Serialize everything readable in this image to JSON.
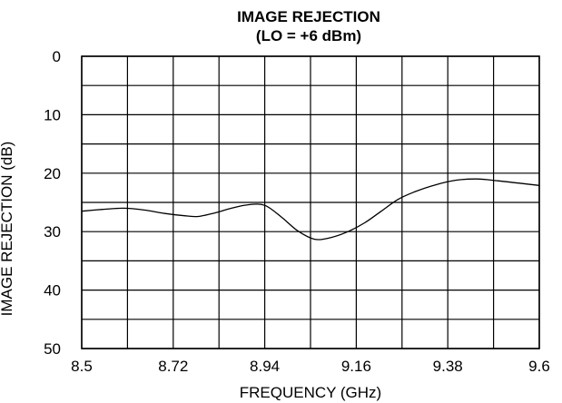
{
  "chart_data": {
    "type": "line",
    "title": "IMAGE REJECTION",
    "subtitle": "(LO = +6 dBm)",
    "xlabel": "FREQUENCY (GHz)",
    "ylabel": "IMAGE REJECTION (dB)",
    "xlim": [
      8.5,
      9.6
    ],
    "ylim": [
      0,
      50
    ],
    "y_inverted": true,
    "x_ticks": [
      "8.5",
      "8.72",
      "8.94",
      "9.16",
      "9.38",
      "9.6"
    ],
    "x_tick_values": [
      8.5,
      8.72,
      8.94,
      9.16,
      9.38,
      9.6
    ],
    "y_ticks": [
      "0",
      "10",
      "20",
      "30",
      "40",
      "50"
    ],
    "y_tick_values": [
      0,
      10,
      20,
      30,
      40,
      50
    ],
    "x_minor_grid": [
      8.61,
      8.83,
      9.05,
      9.27,
      9.49
    ],
    "y_minor_grid": [
      5,
      15,
      25,
      35,
      45
    ],
    "grid": true,
    "legend": "none",
    "line_color": "#000000",
    "series": [
      {
        "x": [
          8.5,
          8.55,
          8.6,
          8.65,
          8.7,
          8.75,
          8.78,
          8.82,
          8.86,
          8.9,
          8.94,
          8.98,
          9.02,
          9.06,
          9.1,
          9.14,
          9.18,
          9.22,
          9.26,
          9.3,
          9.35,
          9.4,
          9.45,
          9.5,
          9.55,
          9.6
        ],
        "values": [
          26.5,
          26.2,
          26.0,
          26.3,
          26.9,
          27.3,
          27.4,
          26.8,
          26.0,
          25.4,
          25.5,
          27.5,
          29.9,
          31.3,
          31.0,
          30.0,
          28.5,
          26.5,
          24.5,
          23.2,
          22.0,
          21.2,
          21.0,
          21.3,
          21.7,
          22.1
        ]
      }
    ]
  }
}
